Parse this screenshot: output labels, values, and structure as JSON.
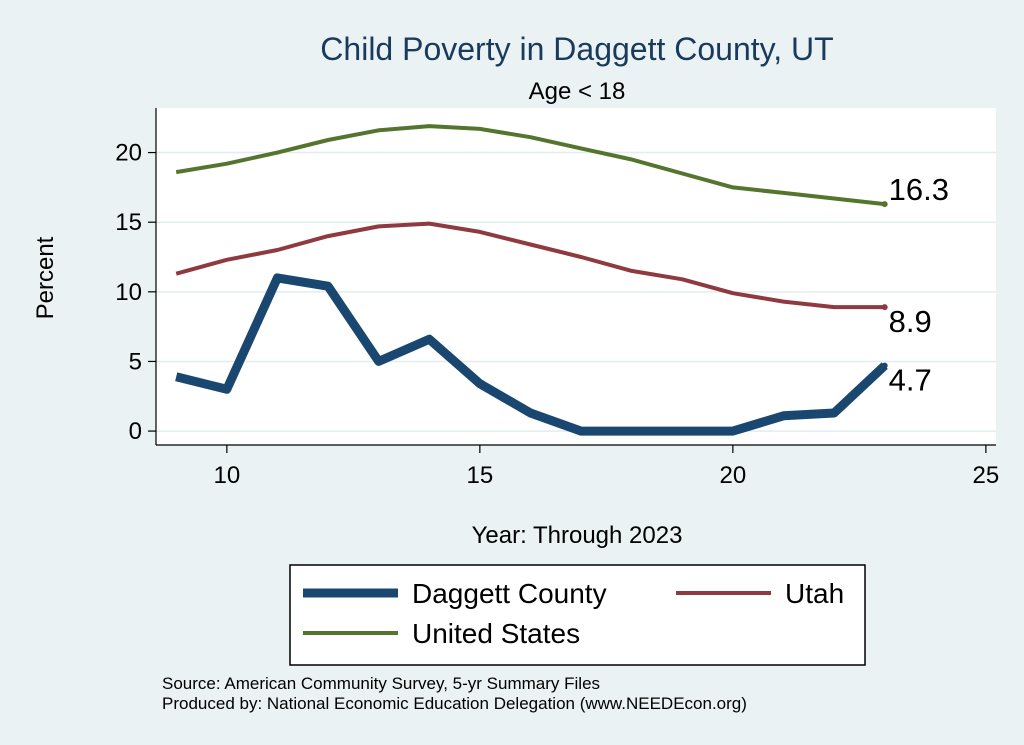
{
  "chart_data": {
    "type": "line",
    "title": "Child Poverty in Daggett County, UT",
    "subtitle": "Age < 18",
    "xlabel": "Year: Through 2023",
    "ylabel": "Percent",
    "xlim": [
      8.6,
      25.2
    ],
    "ylim": [
      -1.0,
      23.2
    ],
    "xticks": [
      10,
      15,
      20,
      25
    ],
    "yticks": [
      0,
      5,
      10,
      15,
      20
    ],
    "grid": true,
    "legend_position": "bottom",
    "series": [
      {
        "name": "United States",
        "color": "#55752f",
        "x": [
          9,
          10,
          11,
          12,
          13,
          14,
          15,
          16,
          17,
          18,
          19,
          20,
          21,
          22,
          23
        ],
        "values": [
          18.6,
          19.2,
          20.0,
          20.9,
          21.6,
          21.9,
          21.7,
          21.1,
          20.3,
          19.5,
          18.5,
          17.5,
          17.1,
          16.7,
          16.3
        ],
        "end_label": "16.3"
      },
      {
        "name": "Utah",
        "color": "#8f3a40",
        "x": [
          9,
          10,
          11,
          12,
          13,
          14,
          15,
          16,
          17,
          18,
          19,
          20,
          21,
          22,
          23
        ],
        "values": [
          11.3,
          12.3,
          13.0,
          14.0,
          14.7,
          14.9,
          14.3,
          13.4,
          12.5,
          11.5,
          10.9,
          9.9,
          9.3,
          8.9,
          8.9
        ],
        "end_label": "8.9"
      },
      {
        "name": "Daggett County",
        "color": "#1a476f",
        "x": [
          9,
          10,
          11,
          12,
          13,
          14,
          15,
          16,
          17,
          18,
          19,
          20,
          21,
          22,
          23
        ],
        "values": [
          3.9,
          3.0,
          11.0,
          10.4,
          5.0,
          6.6,
          3.4,
          1.3,
          0.0,
          0.0,
          0.0,
          0.0,
          1.1,
          1.3,
          4.7
        ],
        "end_label": "4.7"
      }
    ],
    "legend": [
      {
        "label": "Daggett County",
        "color": "#1a476f"
      },
      {
        "label": "Utah",
        "color": "#8f3a40"
      },
      {
        "label": "United States",
        "color": "#55752f"
      }
    ]
  },
  "source_note": "Source: American Community Survey, 5-yr Summary Files",
  "produced_note": "Produced by: National Economic Education Delegation (www.NEEDEcon.org)"
}
